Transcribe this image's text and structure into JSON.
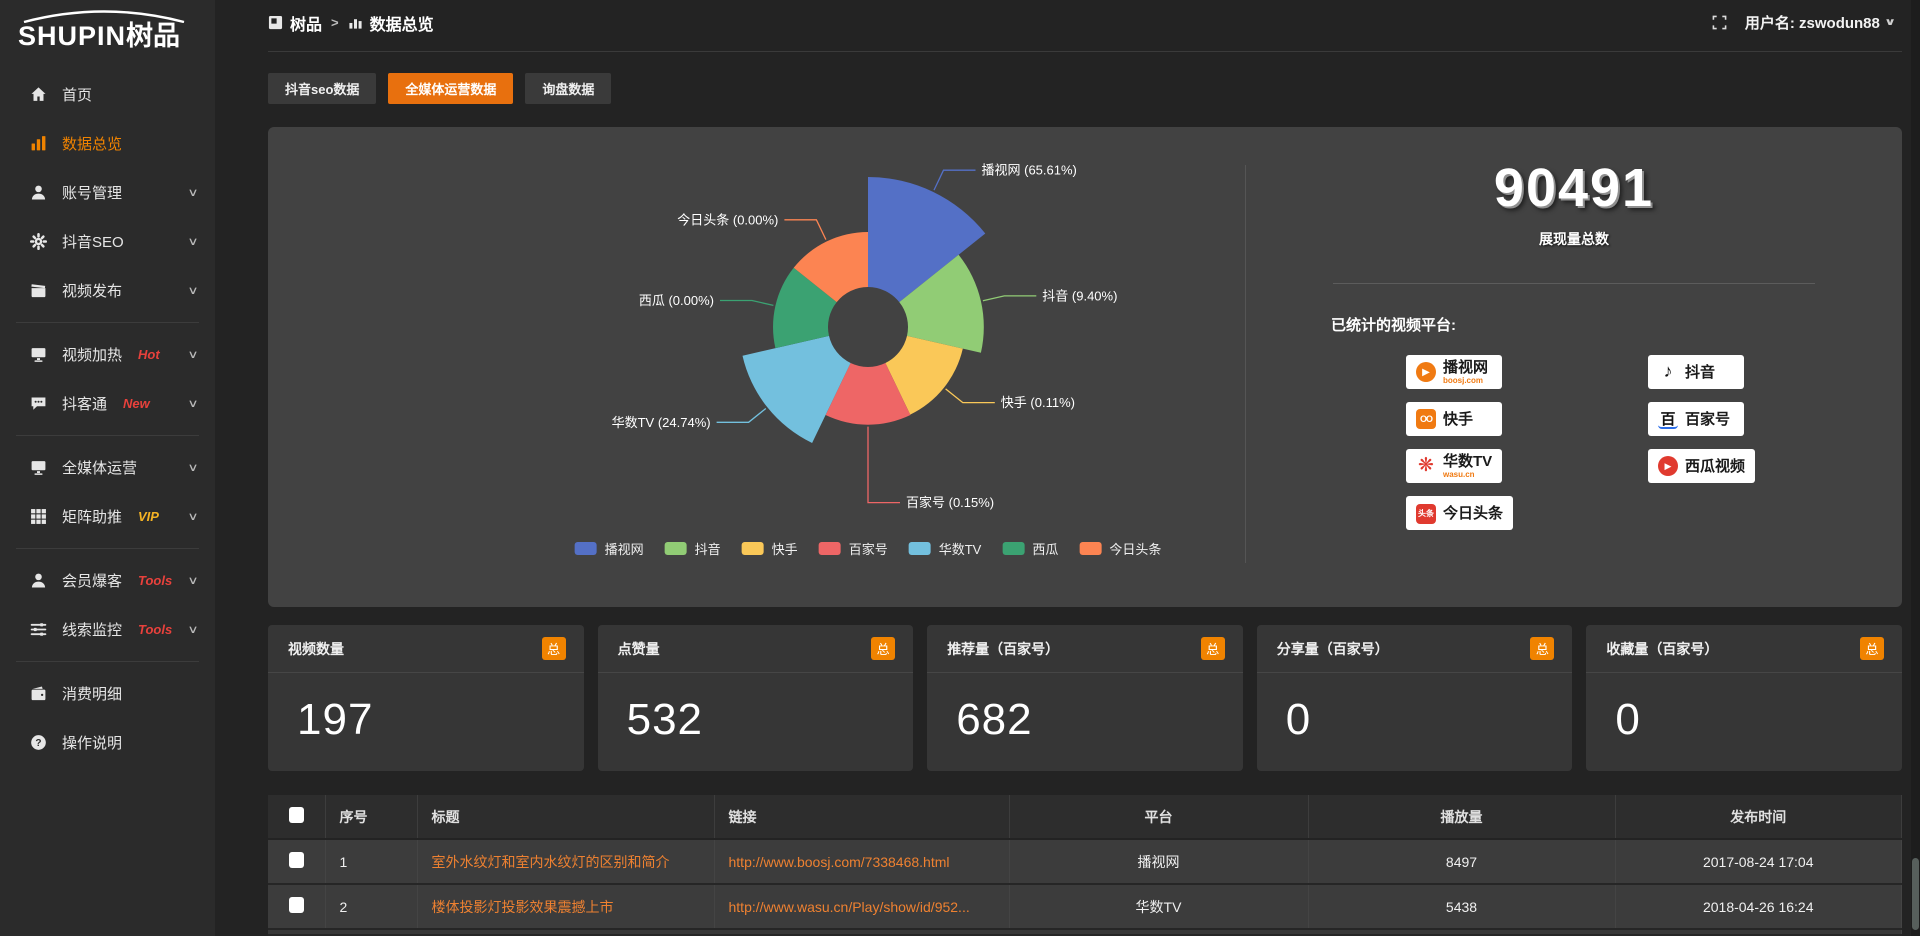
{
  "app": {
    "logo_en": "SHUPIN",
    "logo_cn": "树品"
  },
  "topbar": {
    "breadcrumb": [
      {
        "label": "树品"
      },
      {
        "label": "数据总览"
      }
    ],
    "username": "用户名: zswodun88"
  },
  "sidebar": {
    "items": [
      {
        "icon": "home",
        "label": "首页",
        "active": false,
        "chevron": false
      },
      {
        "icon": "bar-chart",
        "label": "数据总览",
        "active": true,
        "chevron": false
      },
      {
        "icon": "user",
        "label": "账号管理",
        "chevron": true
      },
      {
        "icon": "gear",
        "label": "抖音SEO",
        "chevron": true
      },
      {
        "icon": "publish",
        "label": "视频发布",
        "chevron": true
      },
      {
        "divider": true
      },
      {
        "icon": "screen-heat",
        "label": "视频加热",
        "badge": "Hot",
        "badge_color": "#e8413c",
        "chevron": true
      },
      {
        "icon": "chat",
        "label": "抖客通",
        "badge": "New",
        "badge_color": "#e8413c",
        "chevron": true
      },
      {
        "divider": true
      },
      {
        "icon": "monitor",
        "label": "全媒体运营",
        "chevron": true
      },
      {
        "icon": "grid",
        "label": "矩阵助推",
        "badge": "VIP",
        "badge_color": "#f5b324",
        "chevron": true
      },
      {
        "divider": true
      },
      {
        "icon": "user-star",
        "label": "会员爆客",
        "badge": "Tools",
        "badge_color": "#e8413c",
        "chevron": true
      },
      {
        "icon": "sliders",
        "label": "线索监控",
        "badge": "Tools",
        "badge_color": "#e8413c",
        "chevron": true
      },
      {
        "divider": true
      },
      {
        "icon": "wallet",
        "label": "消费明细",
        "chevron": false
      },
      {
        "icon": "question",
        "label": "操作说明",
        "chevron": false
      }
    ]
  },
  "tabs": [
    {
      "key": "douyin-seo-data",
      "label": "抖音seo数据",
      "active": false
    },
    {
      "key": "omni-media-data",
      "label": "全媒体运营数据",
      "active": true
    },
    {
      "key": "inquiry-data",
      "label": "询盘数据",
      "active": false
    }
  ],
  "chart_data": {
    "type": "pie",
    "variant": "nightingale-rose",
    "categories": [
      "播视网",
      "抖音",
      "快手",
      "百家号",
      "华数TV",
      "西瓜",
      "今日头条"
    ],
    "values": [
      65.61,
      9.4,
      0.11,
      0.15,
      24.74,
      0.0,
      0.0
    ],
    "value_unit": "percent",
    "labels": [
      "播视网 (65.61%)",
      "抖音 (9.40%)",
      "快手 (0.11%)",
      "百家号 (0.15%)",
      "华数TV (24.74%)",
      "西瓜 (0.00%)",
      "今日头条 (0.00%)"
    ],
    "colors": [
      "#5470c6",
      "#91cc75",
      "#fac858",
      "#ee6666",
      "#73c0de",
      "#3ba272",
      "#fc8452"
    ],
    "legend": [
      "播视网",
      "抖音",
      "快手",
      "百家号",
      "华数TV",
      "西瓜",
      "今日头条"
    ],
    "legend_position": "bottom",
    "donut": true,
    "title": ""
  },
  "overview": {
    "total_value": "90491",
    "total_label": "展现量总数",
    "platforms_label": "已统计的视频平台:",
    "platforms_left": [
      {
        "icon": "boosj",
        "name": "播视网",
        "sub": "boosj.com"
      },
      {
        "icon": "kuaishou",
        "name": "快手",
        "sub": ""
      },
      {
        "icon": "wasu",
        "name": "华数TV",
        "sub": "wasu.cn"
      },
      {
        "icon": "toutiao",
        "name": "今日头条",
        "sub": ""
      }
    ],
    "platforms_right": [
      {
        "icon": "douyin",
        "name": "抖音",
        "sub": ""
      },
      {
        "icon": "baijiahao",
        "name": "百家号",
        "sub": ""
      },
      {
        "icon": "xigua",
        "name": "西瓜视频",
        "sub": ""
      }
    ]
  },
  "stat_cards": [
    {
      "title": "视频数量",
      "badge": "总",
      "value": "197"
    },
    {
      "title": "点赞量",
      "badge": "总",
      "value": "532"
    },
    {
      "title": "推荐量（百家号）",
      "badge": "总",
      "value": "682"
    },
    {
      "title": "分享量（百家号）",
      "badge": "总",
      "value": "0"
    },
    {
      "title": "收藏量（百家号）",
      "badge": "总",
      "value": "0"
    }
  ],
  "table": {
    "headers": [
      "序号",
      "标题",
      "链接",
      "平台",
      "播放量",
      "发布时间"
    ],
    "rows": [
      {
        "seq": "1",
        "title": "室外水纹灯和室内水纹灯的区别和简介",
        "link": "http://www.boosj.com/7338468.html",
        "platform": "播视网",
        "plays": "8497",
        "time": "2017-08-24 17:04"
      },
      {
        "seq": "2",
        "title": "楼体投影灯投影效果震撼上市",
        "link": "http://www.wasu.cn/Play/show/id/952...",
        "platform": "华数TV",
        "plays": "5438",
        "time": "2018-04-26 16:24"
      }
    ]
  }
}
